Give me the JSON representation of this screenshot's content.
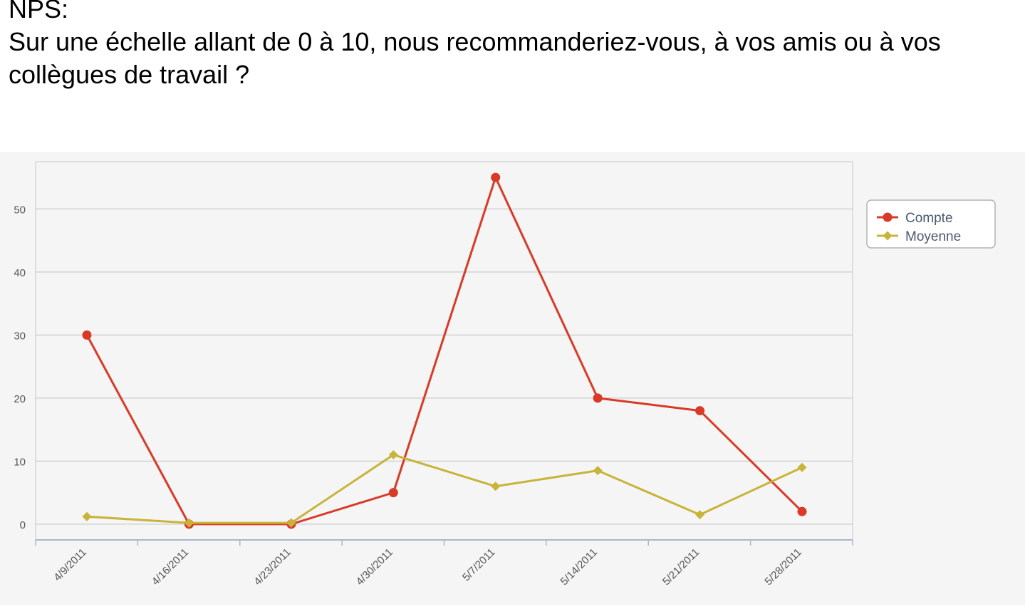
{
  "heading": {
    "label": "NPS:",
    "question": "Sur une échelle allant de 0 à 10, nous recommanderiez-vous, à vos amis ou à vos collègues de travail ?"
  },
  "chart_data": {
    "type": "line",
    "categories": [
      "4/9/2011",
      "4/16/2011",
      "4/23/2011",
      "4/30/2011",
      "5/7/2011",
      "5/14/2011",
      "5/21/2011",
      "5/28/2011"
    ],
    "series": [
      {
        "name": "Compte",
        "color": "#d93a27",
        "marker": "circle",
        "values": [
          30,
          0,
          0,
          5,
          55,
          20,
          18,
          2
        ]
      },
      {
        "name": "Moyenne",
        "color": "#c8b43a",
        "marker": "diamond",
        "values": [
          1.2,
          0.2,
          0.2,
          11,
          6,
          8.5,
          1.5,
          9
        ]
      }
    ],
    "yticks": [
      0,
      10,
      20,
      30,
      40,
      50
    ],
    "ylim": [
      -2.5,
      57.5
    ],
    "grid": true,
    "legend_position": "right",
    "xlabel": "",
    "ylabel": ""
  }
}
